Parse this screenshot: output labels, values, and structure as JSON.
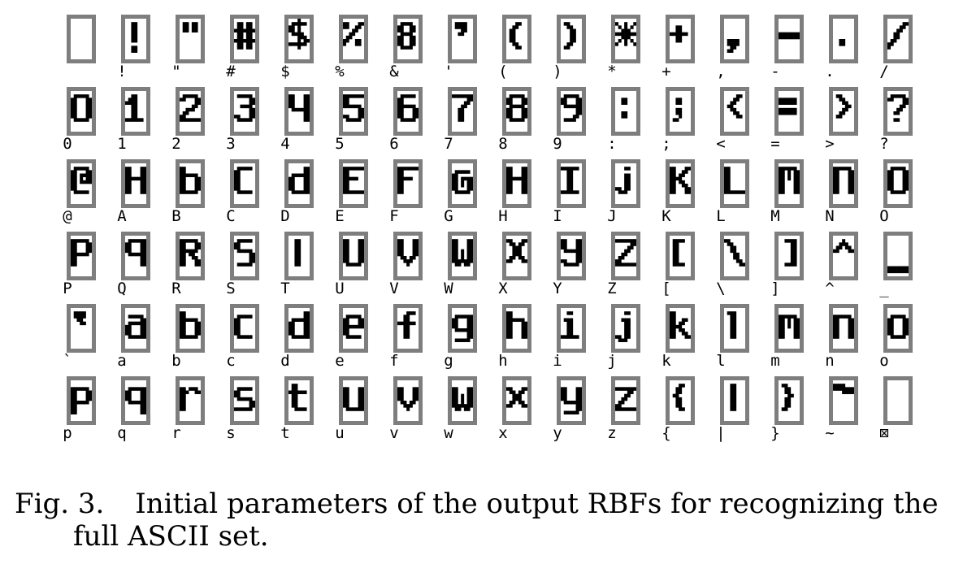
{
  "figure": {
    "rows": [
      [
        " ",
        "!",
        "\"",
        "#",
        "$",
        "%",
        "&",
        "'",
        "(",
        ")",
        "*",
        "+",
        ",",
        "-",
        ".",
        "/"
      ],
      [
        "0",
        "1",
        "2",
        "3",
        "4",
        "5",
        "6",
        "7",
        "8",
        "9",
        ":",
        ";",
        "<",
        "=",
        ">",
        "?"
      ],
      [
        "@",
        "A",
        "B",
        "C",
        "D",
        "E",
        "F",
        "G",
        "H",
        "I",
        "J",
        "K",
        "L",
        "M",
        "N",
        "O"
      ],
      [
        "P",
        "Q",
        "R",
        "S",
        "T",
        "U",
        "V",
        "W",
        "X",
        "Y",
        "Z",
        "[",
        "\\",
        "]",
        "^",
        "_"
      ],
      [
        "`",
        "a",
        "b",
        "c",
        "d",
        "e",
        "f",
        "g",
        "h",
        "i",
        "j",
        "k",
        "l",
        "m",
        "n",
        "o"
      ],
      [
        "p",
        "q",
        "r",
        "s",
        "t",
        "u",
        "v",
        "w",
        "x",
        "y",
        "z",
        "{",
        "|",
        "}",
        "~",
        "⊠"
      ]
    ],
    "colors": {
      "frame": "#7e7e7e",
      "ink": "#000000",
      "paper": "#ffffff"
    }
  },
  "caption": {
    "number": "Fig. 3.",
    "text_line1": "Initial parameters of the output RBFs for recognizing the",
    "text_line2": "full ASCII set."
  }
}
